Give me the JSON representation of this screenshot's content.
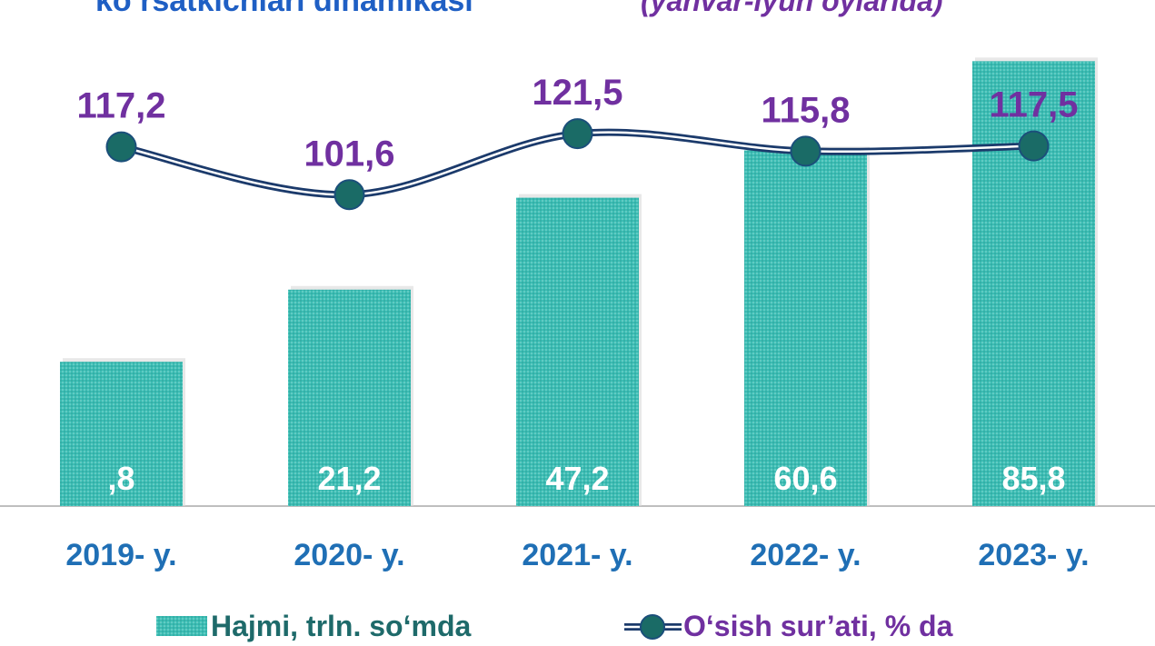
{
  "chart_data": {
    "type": "bar-line",
    "title": "ko‘rsatkichlari dinamikasi",
    "subtitle": "(yanvar-iyun oylarida)",
    "categories": [
      "2019- y.",
      "2020- y.",
      "2021- y.",
      "2022- y.",
      "2023- y."
    ],
    "series": [
      {
        "name": "Hajmi, trln. so‘mda",
        "type": "bar",
        "color": "#3cbdb4",
        "values": [
          0.8,
          21.2,
          47.2,
          60.6,
          85.8
        ],
        "value_labels": [
          ",8",
          "21,2",
          "47,2",
          "60,6",
          "85,8"
        ]
      },
      {
        "name": "O‘sish sur’ati, % da",
        "type": "line",
        "axis": "y2",
        "color": "#1b3a6b",
        "marker_color": "#1a6b66",
        "values": [
          117.2,
          101.6,
          121.5,
          115.8,
          117.5
        ],
        "value_labels": [
          "117,2",
          "101,6",
          "121,5",
          "115,8",
          "117,5"
        ]
      }
    ],
    "ylim": [
      -40,
      90
    ],
    "y2lim": [
      0,
      150
    ],
    "legend": "bottom"
  }
}
